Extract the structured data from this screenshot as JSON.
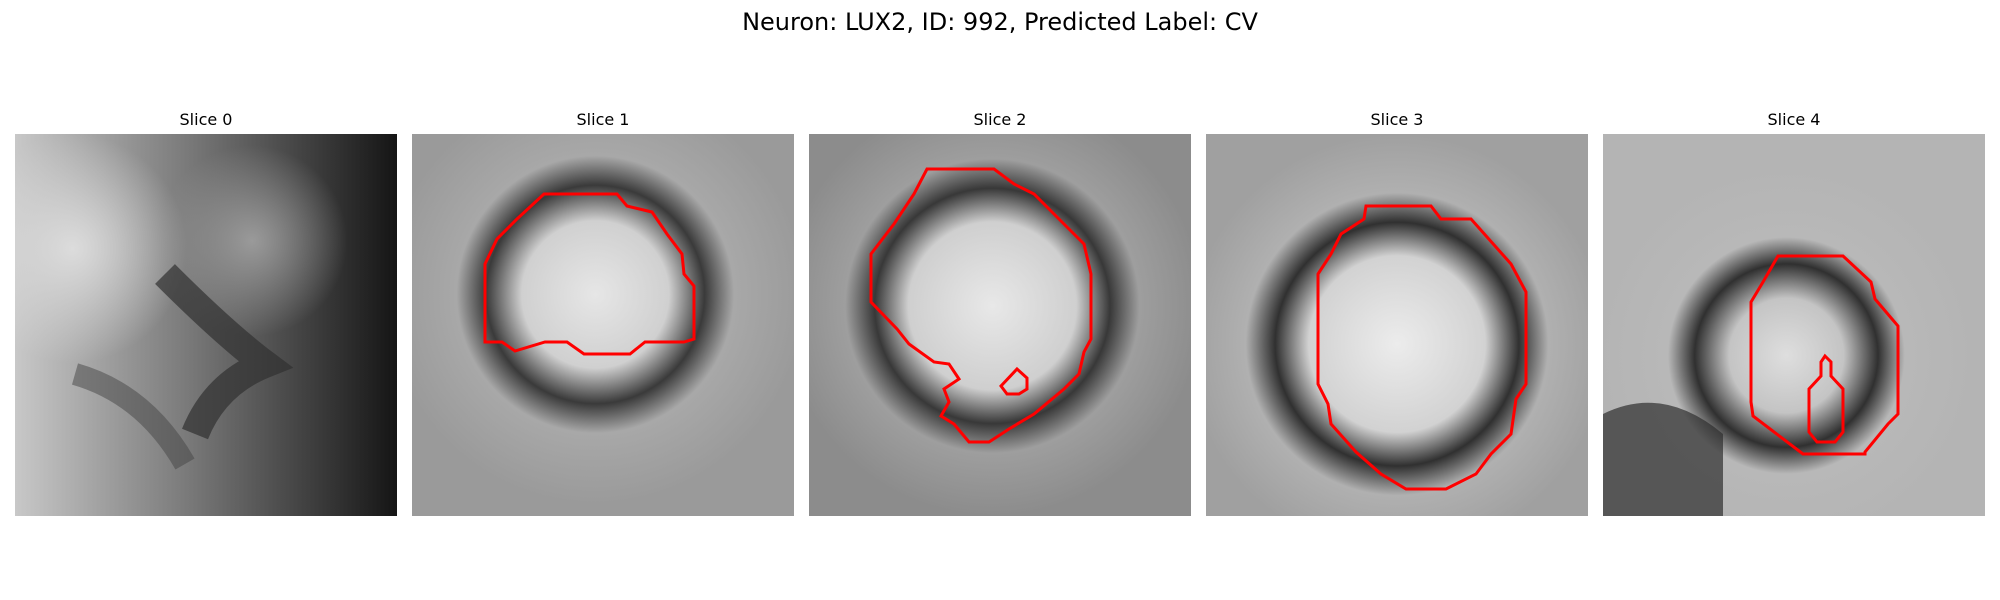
{
  "figure": {
    "title": "Neuron: LUX2, ID: 992, Predicted Label: CV"
  },
  "panels": [
    {
      "title": "Slice 0",
      "has_contour": false
    },
    {
      "title": "Slice 1",
      "has_contour": true
    },
    {
      "title": "Slice 2",
      "has_contour": true
    },
    {
      "title": "Slice 3",
      "has_contour": true
    },
    {
      "title": "Slice 4",
      "has_contour": true
    }
  ],
  "colors": {
    "contour": "#ff0000",
    "background": "#ffffff"
  }
}
